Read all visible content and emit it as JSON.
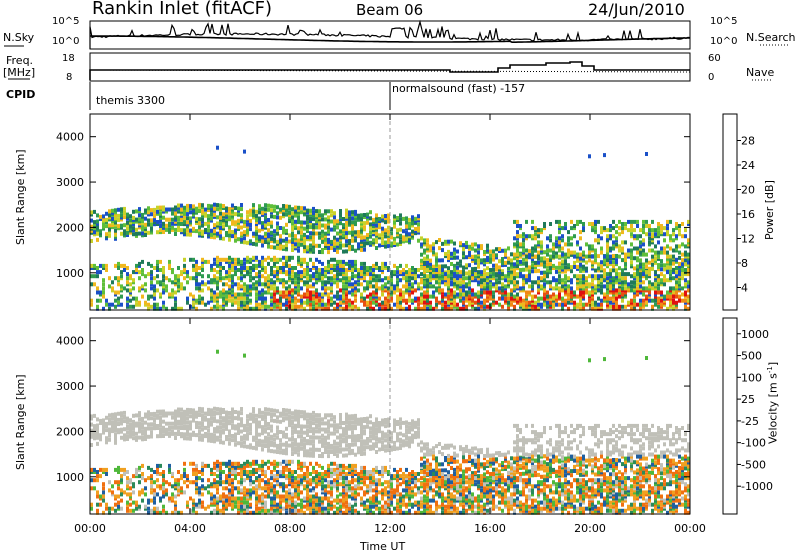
{
  "header": {
    "station": "Rankin Inlet (fitACF)",
    "beam": "Beam 06",
    "date": "24/Jun/2010"
  },
  "top_panel": {
    "left_label": "N.Sky",
    "right_label": "N.Search",
    "left_ticks": [
      "10^5",
      "10^0"
    ],
    "right_ticks": [
      "10^5",
      "10^0"
    ]
  },
  "freq_panel": {
    "left_label_1": "Freq.",
    "left_label_2": "[MHz]",
    "right_label": "Nave",
    "left_ticks": [
      "18",
      "8"
    ],
    "right_ticks": [
      "60",
      "0"
    ]
  },
  "cpid": {
    "label": "CPID",
    "modes": [
      "themis 3300",
      "normalsound (fast) -157"
    ]
  },
  "chart_data": [
    {
      "type": "heatmap",
      "panel": "power",
      "ylabel": "Slant Range [km]",
      "xlabel": "Time UT",
      "xlim": [
        "00:00",
        "00:00"
      ],
      "ylim": [
        180,
        4500
      ],
      "y_ticks": [
        "1000",
        "2000",
        "3000",
        "4000"
      ],
      "x_ticks": [
        "00:00",
        "04:00",
        "08:00",
        "12:00",
        "16:00",
        "20:00",
        "00:00"
      ],
      "colorbar": {
        "label": "Power [dB]",
        "ticks": [
          "4",
          "8",
          "12",
          "16",
          "20",
          "24",
          "28"
        ],
        "colors": [
          "#0a10e0",
          "#1a50c8",
          "#1f7a5a",
          "#2f9b50",
          "#5fbf3a",
          "#c8d22a",
          "#f0b81e",
          "#f08a14",
          "#e85010",
          "#e01010"
        ]
      }
    },
    {
      "type": "heatmap",
      "panel": "velocity",
      "ylabel": "Slant Range [km]",
      "xlabel": "Time UT",
      "ylim": [
        180,
        4500
      ],
      "y_ticks": [
        "1000",
        "2000",
        "3000",
        "4000"
      ],
      "x_ticks": [
        "00:00",
        "04:00",
        "08:00",
        "12:00",
        "16:00",
        "20:00",
        "00:00"
      ],
      "colorbar": {
        "label_main": "Velocity [m s",
        "label_exp": "-1",
        "label_end": "]",
        "ticks": [
          "1000",
          "500",
          "100",
          "25",
          "-25",
          "-100",
          "-500",
          "-1000"
        ],
        "colors": [
          "#1030c0",
          "#1f5fa0",
          "#2a8a5a",
          "#4fb83a",
          "#c0c0b8",
          "#c0c0b8",
          "#f0a020",
          "#f07010",
          "#e84010",
          "#e01010"
        ]
      }
    }
  ],
  "time_axis_label": "Time UT"
}
